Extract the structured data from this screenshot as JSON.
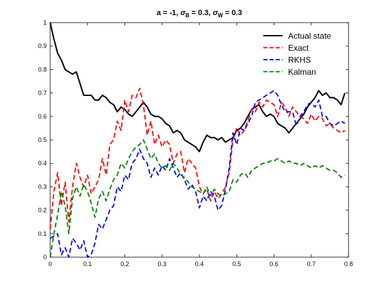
{
  "chart_data": {
    "type": "line",
    "title_parts": {
      "prefix": "a = -1, ",
      "sigma": "σ",
      "sub_b": "B",
      "mid": " = 0.3, ",
      "sub_w": "W",
      "suffix": " = 0.3"
    },
    "xlabel": "",
    "ylabel": "",
    "xlim": [
      0,
      0.8
    ],
    "ylim": [
      0,
      1
    ],
    "xticks": [
      "0",
      "0.1",
      "0.2",
      "0.3",
      "0.4",
      "0.5",
      "0.6",
      "0.7",
      "0.8"
    ],
    "yticks": [
      "0",
      "0.1",
      "0.2",
      "0.3",
      "0.4",
      "0.5",
      "0.6",
      "0.7",
      "0.8",
      "0.9",
      "1"
    ],
    "grid": false,
    "legend_position": "top-right",
    "series": [
      {
        "name": "Actual state",
        "color": "#000000",
        "dash": "solid",
        "x": [
          0,
          0.01,
          0.02,
          0.03,
          0.04,
          0.05,
          0.06,
          0.07,
          0.08,
          0.09,
          0.1,
          0.11,
          0.12,
          0.13,
          0.14,
          0.15,
          0.16,
          0.17,
          0.18,
          0.19,
          0.2,
          0.21,
          0.22,
          0.23,
          0.24,
          0.25,
          0.26,
          0.27,
          0.28,
          0.29,
          0.3,
          0.31,
          0.32,
          0.33,
          0.34,
          0.35,
          0.36,
          0.37,
          0.38,
          0.39,
          0.4,
          0.41,
          0.42,
          0.43,
          0.44,
          0.45,
          0.46,
          0.47,
          0.48,
          0.49,
          0.5,
          0.51,
          0.52,
          0.53,
          0.54,
          0.55,
          0.56,
          0.57,
          0.58,
          0.59,
          0.6,
          0.61,
          0.62,
          0.63,
          0.64,
          0.65,
          0.66,
          0.67,
          0.68,
          0.69,
          0.7,
          0.71,
          0.72,
          0.73,
          0.74,
          0.75,
          0.76,
          0.77,
          0.78,
          0.79
        ],
        "y": [
          1.0,
          0.93,
          0.87,
          0.84,
          0.8,
          0.79,
          0.78,
          0.79,
          0.74,
          0.69,
          0.69,
          0.69,
          0.67,
          0.67,
          0.69,
          0.68,
          0.66,
          0.65,
          0.62,
          0.64,
          0.63,
          0.61,
          0.6,
          0.62,
          0.64,
          0.66,
          0.64,
          0.61,
          0.6,
          0.6,
          0.59,
          0.57,
          0.56,
          0.53,
          0.54,
          0.53,
          0.5,
          0.49,
          0.48,
          0.47,
          0.45,
          0.49,
          0.52,
          0.51,
          0.51,
          0.5,
          0.51,
          0.49,
          0.5,
          0.51,
          0.54,
          0.55,
          0.57,
          0.6,
          0.63,
          0.64,
          0.65,
          0.62,
          0.6,
          0.61,
          0.6,
          0.57,
          0.56,
          0.55,
          0.53,
          0.55,
          0.57,
          0.59,
          0.61,
          0.64,
          0.66,
          0.68,
          0.71,
          0.69,
          0.7,
          0.68,
          0.68,
          0.67,
          0.65,
          0.7
        ]
      },
      {
        "name": "Exact",
        "color": "#ff0000",
        "dash": "dashed",
        "x": [
          0,
          0.01,
          0.02,
          0.03,
          0.04,
          0.05,
          0.06,
          0.07,
          0.08,
          0.09,
          0.1,
          0.11,
          0.12,
          0.13,
          0.14,
          0.15,
          0.16,
          0.17,
          0.18,
          0.19,
          0.2,
          0.21,
          0.22,
          0.23,
          0.24,
          0.25,
          0.26,
          0.27,
          0.28,
          0.29,
          0.3,
          0.31,
          0.32,
          0.33,
          0.34,
          0.35,
          0.36,
          0.37,
          0.38,
          0.39,
          0.4,
          0.41,
          0.42,
          0.43,
          0.44,
          0.45,
          0.46,
          0.47,
          0.48,
          0.49,
          0.5,
          0.51,
          0.52,
          0.53,
          0.54,
          0.55,
          0.56,
          0.57,
          0.58,
          0.59,
          0.6,
          0.61,
          0.62,
          0.63,
          0.64,
          0.65,
          0.66,
          0.67,
          0.68,
          0.69,
          0.7,
          0.71,
          0.72,
          0.73,
          0.74,
          0.75,
          0.76,
          0.77,
          0.78,
          0.79
        ],
        "y": [
          0.12,
          0.28,
          0.36,
          0.22,
          0.32,
          0.15,
          0.3,
          0.4,
          0.34,
          0.3,
          0.35,
          0.27,
          0.3,
          0.33,
          0.42,
          0.35,
          0.48,
          0.5,
          0.58,
          0.54,
          0.67,
          0.62,
          0.69,
          0.68,
          0.72,
          0.65,
          0.52,
          0.58,
          0.48,
          0.52,
          0.47,
          0.5,
          0.48,
          0.4,
          0.44,
          0.45,
          0.36,
          0.42,
          0.4,
          0.38,
          0.3,
          0.27,
          0.29,
          0.24,
          0.28,
          0.25,
          0.27,
          0.3,
          0.36,
          0.5,
          0.55,
          0.52,
          0.54,
          0.58,
          0.63,
          0.62,
          0.66,
          0.64,
          0.67,
          0.66,
          0.65,
          0.6,
          0.66,
          0.64,
          0.6,
          0.64,
          0.62,
          0.6,
          0.59,
          0.57,
          0.61,
          0.58,
          0.6,
          0.59,
          0.56,
          0.57,
          0.55,
          0.54,
          0.53,
          0.54
        ]
      },
      {
        "name": "RKHS",
        "color": "#0000ff",
        "dash": "dashed",
        "x": [
          0,
          0.01,
          0.02,
          0.03,
          0.04,
          0.05,
          0.06,
          0.07,
          0.08,
          0.09,
          0.1,
          0.11,
          0.12,
          0.13,
          0.14,
          0.15,
          0.16,
          0.17,
          0.18,
          0.19,
          0.2,
          0.21,
          0.22,
          0.23,
          0.24,
          0.25,
          0.26,
          0.27,
          0.28,
          0.29,
          0.3,
          0.31,
          0.32,
          0.33,
          0.34,
          0.35,
          0.36,
          0.37,
          0.38,
          0.39,
          0.4,
          0.41,
          0.42,
          0.43,
          0.44,
          0.45,
          0.46,
          0.47,
          0.48,
          0.49,
          0.5,
          0.51,
          0.52,
          0.53,
          0.54,
          0.55,
          0.56,
          0.57,
          0.58,
          0.59,
          0.6,
          0.61,
          0.62,
          0.63,
          0.64,
          0.65,
          0.66,
          0.67,
          0.68,
          0.69,
          0.7,
          0.71,
          0.72,
          0.73,
          0.74,
          0.75,
          0.76,
          0.77,
          0.78,
          0.79
        ],
        "y": [
          0.08,
          0.09,
          0.1,
          0.01,
          0.04,
          0.0,
          0.08,
          0.06,
          0.03,
          0.07,
          0.0,
          0.01,
          0.06,
          0.14,
          0.12,
          0.16,
          0.2,
          0.22,
          0.3,
          0.28,
          0.35,
          0.33,
          0.4,
          0.42,
          0.46,
          0.42,
          0.4,
          0.34,
          0.38,
          0.35,
          0.39,
          0.37,
          0.42,
          0.38,
          0.34,
          0.36,
          0.33,
          0.29,
          0.31,
          0.28,
          0.21,
          0.26,
          0.24,
          0.28,
          0.26,
          0.2,
          0.22,
          0.29,
          0.38,
          0.53,
          0.48,
          0.55,
          0.54,
          0.57,
          0.6,
          0.66,
          0.67,
          0.68,
          0.69,
          0.7,
          0.71,
          0.69,
          0.65,
          0.62,
          0.62,
          0.62,
          0.56,
          0.6,
          0.62,
          0.65,
          0.66,
          0.64,
          0.67,
          0.6,
          0.6,
          0.57,
          0.56,
          0.57,
          0.58,
          0.57
        ]
      },
      {
        "name": "Kalman",
        "color": "#008000",
        "dash": "dashed",
        "x": [
          0,
          0.01,
          0.02,
          0.03,
          0.04,
          0.05,
          0.06,
          0.07,
          0.08,
          0.09,
          0.1,
          0.11,
          0.12,
          0.13,
          0.14,
          0.15,
          0.16,
          0.17,
          0.18,
          0.19,
          0.2,
          0.21,
          0.22,
          0.23,
          0.24,
          0.25,
          0.26,
          0.27,
          0.28,
          0.29,
          0.3,
          0.31,
          0.32,
          0.33,
          0.34,
          0.35,
          0.36,
          0.37,
          0.38,
          0.39,
          0.4,
          0.41,
          0.42,
          0.43,
          0.44,
          0.45,
          0.46,
          0.47,
          0.48,
          0.49,
          0.5,
          0.51,
          0.52,
          0.53,
          0.54,
          0.55,
          0.56,
          0.57,
          0.58,
          0.59,
          0.6,
          0.61,
          0.62,
          0.63,
          0.64,
          0.65,
          0.66,
          0.67,
          0.68,
          0.69,
          0.7,
          0.71,
          0.72,
          0.73,
          0.74,
          0.75,
          0.76,
          0.77,
          0.78,
          0.79
        ],
        "y": [
          0.0,
          0.1,
          0.18,
          0.28,
          0.22,
          0.1,
          0.25,
          0.3,
          0.26,
          0.31,
          0.28,
          0.23,
          0.17,
          0.25,
          0.28,
          0.24,
          0.29,
          0.33,
          0.35,
          0.4,
          0.38,
          0.42,
          0.45,
          0.47,
          0.48,
          0.5,
          0.46,
          0.42,
          0.44,
          0.4,
          0.38,
          0.39,
          0.37,
          0.4,
          0.38,
          0.35,
          0.34,
          0.32,
          0.3,
          0.29,
          0.28,
          0.27,
          0.3,
          0.26,
          0.29,
          0.27,
          0.26,
          0.27,
          0.28,
          0.33,
          0.32,
          0.35,
          0.36,
          0.34,
          0.37,
          0.38,
          0.39,
          0.4,
          0.4,
          0.41,
          0.41,
          0.42,
          0.41,
          0.4,
          0.41,
          0.4,
          0.4,
          0.39,
          0.4,
          0.39,
          0.38,
          0.39,
          0.38,
          0.39,
          0.38,
          0.37,
          0.37,
          0.36,
          0.34,
          0.35
        ]
      }
    ]
  }
}
